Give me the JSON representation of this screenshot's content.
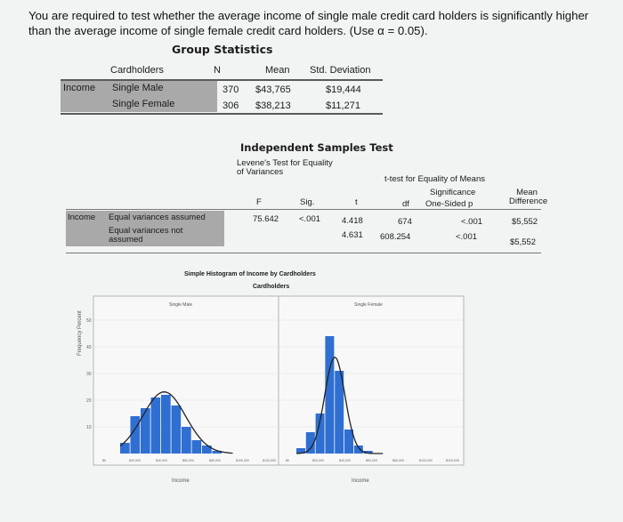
{
  "question": "You are required to test whether the average income of single male credit card holders is significantly higher than the average income of single female credit card holders. (Use α = 0.05).",
  "group_stats": {
    "title": "Group Statistics",
    "headers": {
      "group": "Cardholders",
      "n": "N",
      "mean": "Mean",
      "sd": "Std. Deviation"
    },
    "row_label": "Income",
    "rows": [
      {
        "group": "Single Male",
        "n": "370",
        "mean": "$43,765",
        "sd": "$19,444"
      },
      {
        "group": "Single Female",
        "n": "306",
        "mean": "$38,213",
        "sd": "$11,271"
      }
    ]
  },
  "ind_samples": {
    "title": "Independent Samples Test",
    "levene_header": "Levene's Test for Equality of Variances",
    "ttest_header": "t-test for Equality of Means",
    "significance_header": "Significance",
    "headers": {
      "f": "F",
      "sig": "Sig.",
      "t": "t",
      "df": "df",
      "one_sided": "One-Sided p",
      "mean_diff": "Mean Difference"
    },
    "row_label": "Income",
    "rows": [
      {
        "label": "Equal variances assumed",
        "f": "75.642",
        "sig": "<.001",
        "t": "4.418",
        "df": "674",
        "one_sided": "<.001",
        "mean_diff": "$5,552"
      },
      {
        "label": "Equal variances not assumed",
        "f": "",
        "sig": "",
        "t": "4.631",
        "df": "608.254",
        "one_sided": "<.001",
        "mean_diff": "$5,552"
      }
    ]
  },
  "histogram": {
    "title": "Simple Histogram of Income by Cardholders",
    "subtitle": "Cardholders",
    "ylabel": "Frequency Percent",
    "xlabel": "Income",
    "bar_color": "#2f6fd1",
    "y_ticks": [
      "50",
      "40",
      "30",
      "20",
      "10"
    ],
    "panels": [
      {
        "name": "Single Male",
        "x_ticks": [
          "$0",
          "$20,000",
          "$40,000",
          "$60,000",
          "$80,000",
          "$100,000",
          "$120,000"
        ],
        "bars": [
          4,
          14,
          17,
          21,
          22,
          18,
          10,
          5,
          3,
          1
        ]
      },
      {
        "name": "Single Female",
        "x_ticks": [
          "$0",
          "$20,000",
          "$40,000",
          "$60,000",
          "$80,000",
          "$100,000",
          "$120,000"
        ],
        "bars": [
          2,
          8,
          15,
          44,
          31,
          9,
          3,
          1
        ]
      }
    ]
  }
}
